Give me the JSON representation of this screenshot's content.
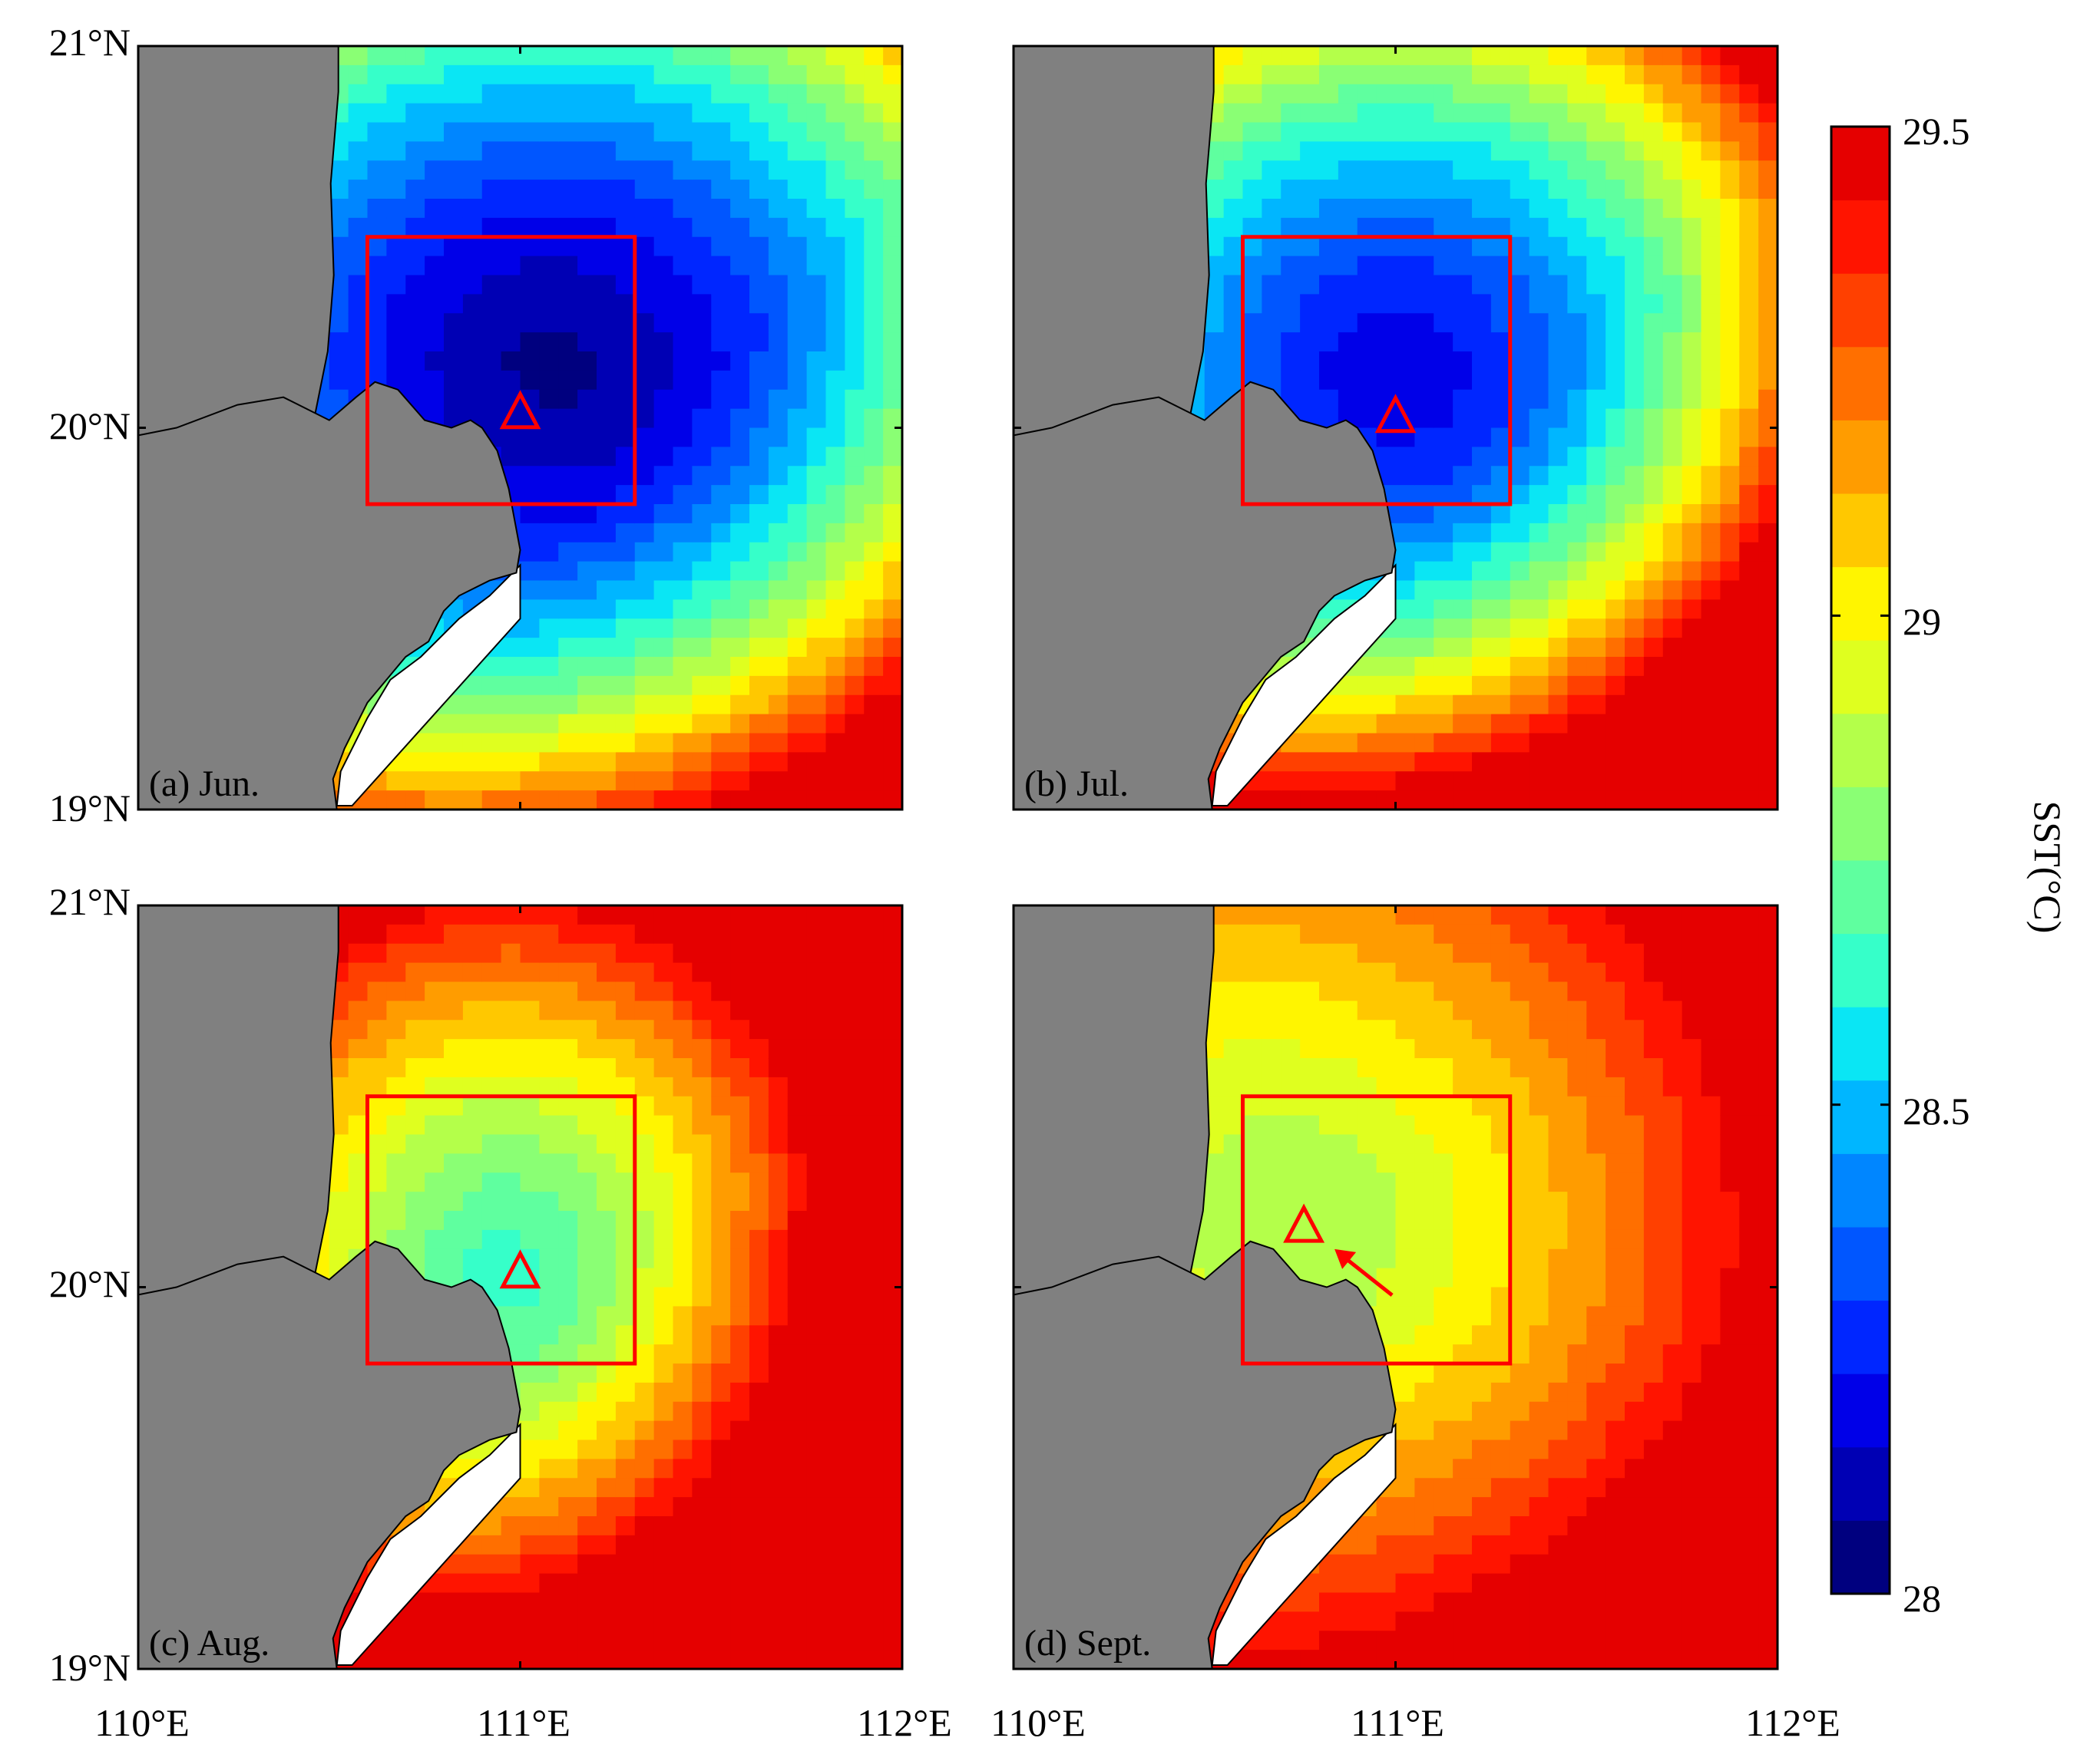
{
  "figure": {
    "lat_labels": [
      "21°N",
      "20°N",
      "19°N"
    ],
    "lon_labels": [
      "110°E",
      "111°E",
      "112°E"
    ],
    "lat_range": [
      19,
      21
    ],
    "lon_range": [
      110,
      112
    ],
    "study_box": {
      "lon": [
        110.6,
        111.3
      ],
      "lat": [
        19.8,
        20.5
      ]
    },
    "panels": [
      {
        "label": "(a) Jun.",
        "triangle": {
          "lon": 111.0,
          "lat": 20.04
        },
        "arrow": false
      },
      {
        "label": "(b) Jul.",
        "triangle": {
          "lon": 111.0,
          "lat": 20.03
        },
        "arrow": false
      },
      {
        "label": "(c) Aug.",
        "triangle": {
          "lon": 111.0,
          "lat": 20.04
        },
        "arrow": false
      },
      {
        "label": "(d) Sept.",
        "triangle": {
          "lon": 110.76,
          "lat": 20.16
        },
        "arrow": true
      }
    ]
  },
  "colorbar": {
    "title": "SST(°C)",
    "min": 28,
    "max": 29.5,
    "tick_labels": [
      "29.5",
      "29",
      "28.5",
      "28"
    ],
    "levels": [
      "#00007F",
      "#0000B4",
      "#0000E8",
      "#0026FF",
      "#0056FF",
      "#0086FF",
      "#00B6FF",
      "#0AE6F4",
      "#36FFC9",
      "#5FFF9F",
      "#8AFF74",
      "#B4FF4A",
      "#DFFF1F",
      "#FFF500",
      "#FFC800",
      "#FF9C00",
      "#FF6F00",
      "#FF4000",
      "#FF1400",
      "#E50000"
    ]
  },
  "style": {
    "land": "#808080",
    "box": "#FF0000",
    "nodata": "#FFFFFF"
  }
}
